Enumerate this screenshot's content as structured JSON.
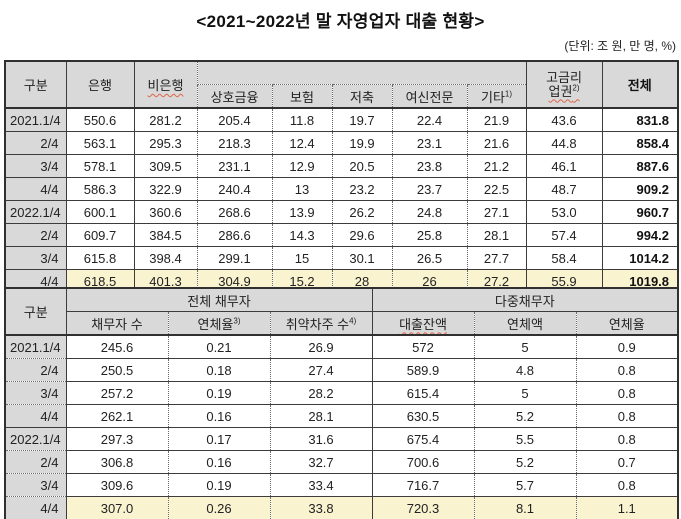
{
  "title": "<2021~2022년 말 자영업자 대출 현황>",
  "unit_note": "(단위: 조 원, 만 명, %)",
  "colors": {
    "header_bg": "#d9d9d9",
    "highlight_bg": "#faf3d0",
    "border": "#3c3c3c",
    "spellcheck_squiggle": "#e0654a",
    "page_bg": "#ffffff"
  },
  "chart_data": [
    {
      "type": "table",
      "name": "자영업자 업권별 대출 현황",
      "col_headers": {
        "gubun": "구분",
        "bank": "은행",
        "nonbank": "비은행",
        "nonbank_subcols": [
          "상호금융",
          "보험",
          "저축",
          "여신전문",
          "기타"
        ],
        "etc_footnote": "1)",
        "high_rate_l1": "고금리",
        "high_rate_l2": "업권",
        "high_rate_footnote": "2)",
        "total": "전체"
      },
      "rows": [
        {
          "period": "2021.1/4",
          "cells": [
            "550.6",
            "281.2",
            "205.4",
            "11.8",
            "19.7",
            "22.4",
            "21.9",
            "43.6"
          ],
          "total": "831.8",
          "highlight": false
        },
        {
          "period": "2/4",
          "cells": [
            "563.1",
            "295.3",
            "218.3",
            "12.4",
            "19.9",
            "23.1",
            "21.6",
            "44.8"
          ],
          "total": "858.4",
          "highlight": false
        },
        {
          "period": "3/4",
          "cells": [
            "578.1",
            "309.5",
            "231.1",
            "12.9",
            "20.5",
            "23.8",
            "21.2",
            "46.1"
          ],
          "total": "887.6",
          "highlight": false
        },
        {
          "period": "4/4",
          "cells": [
            "586.3",
            "322.9",
            "240.4",
            "13",
            "23.2",
            "23.7",
            "22.5",
            "48.7"
          ],
          "total": "909.2",
          "highlight": false
        },
        {
          "period": "2022.1/4",
          "cells": [
            "600.1",
            "360.6",
            "268.6",
            "13.9",
            "26.2",
            "24.8",
            "27.1",
            "53.0"
          ],
          "total": "960.7",
          "highlight": false
        },
        {
          "period": "2/4",
          "cells": [
            "609.7",
            "384.5",
            "286.6",
            "14.3",
            "29.6",
            "25.8",
            "28.1",
            "57.4"
          ],
          "total": "994.2",
          "highlight": false
        },
        {
          "period": "3/4",
          "cells": [
            "615.8",
            "398.4",
            "299.1",
            "15",
            "30.1",
            "26.5",
            "27.7",
            "58.4"
          ],
          "total": "1014.2",
          "highlight": false
        },
        {
          "period": "4/4",
          "cells": [
            "618.5",
            "401.3",
            "304.9",
            "15.2",
            "28",
            "26",
            "27.2",
            "55.9"
          ],
          "total": "1019.8",
          "highlight": true
        }
      ]
    },
    {
      "type": "table",
      "name": "자영업자 채무자 현황",
      "col_headers": {
        "gubun": "구분",
        "group_all": "전체 채무자",
        "group_multi": "다중채무자",
        "subcols": [
          "채무자 수",
          "연체율",
          "취약차주 수",
          "대출잔액",
          "연체액",
          "연체율"
        ],
        "delinquency_footnote": "3)",
        "vulnerable_footnote": "4)"
      },
      "rows": [
        {
          "period": "2021.1/4",
          "cells": [
            "245.6",
            "0.21",
            "26.9",
            "572",
            "5",
            "0.9"
          ],
          "highlight": false
        },
        {
          "period": "2/4",
          "cells": [
            "250.5",
            "0.18",
            "27.4",
            "589.9",
            "4.8",
            "0.8"
          ],
          "highlight": false
        },
        {
          "period": "3/4",
          "cells": [
            "257.2",
            "0.19",
            "28.2",
            "615.4",
            "5",
            "0.8"
          ],
          "highlight": false
        },
        {
          "period": "4/4",
          "cells": [
            "262.1",
            "0.16",
            "28.1",
            "630.5",
            "5.2",
            "0.8"
          ],
          "highlight": false
        },
        {
          "period": "2022.1/4",
          "cells": [
            "297.3",
            "0.17",
            "31.6",
            "675.4",
            "5.5",
            "0.8"
          ],
          "highlight": false
        },
        {
          "period": "2/4",
          "cells": [
            "306.8",
            "0.16",
            "32.7",
            "700.6",
            "5.2",
            "0.7"
          ],
          "highlight": false
        },
        {
          "period": "3/4",
          "cells": [
            "309.6",
            "0.19",
            "33.4",
            "716.7",
            "5.7",
            "0.8"
          ],
          "highlight": false
        },
        {
          "period": "4/4",
          "cells": [
            "307.0",
            "0.26",
            "33.8",
            "720.3",
            "8.1",
            "1.1"
          ],
          "highlight": true
        }
      ]
    }
  ]
}
